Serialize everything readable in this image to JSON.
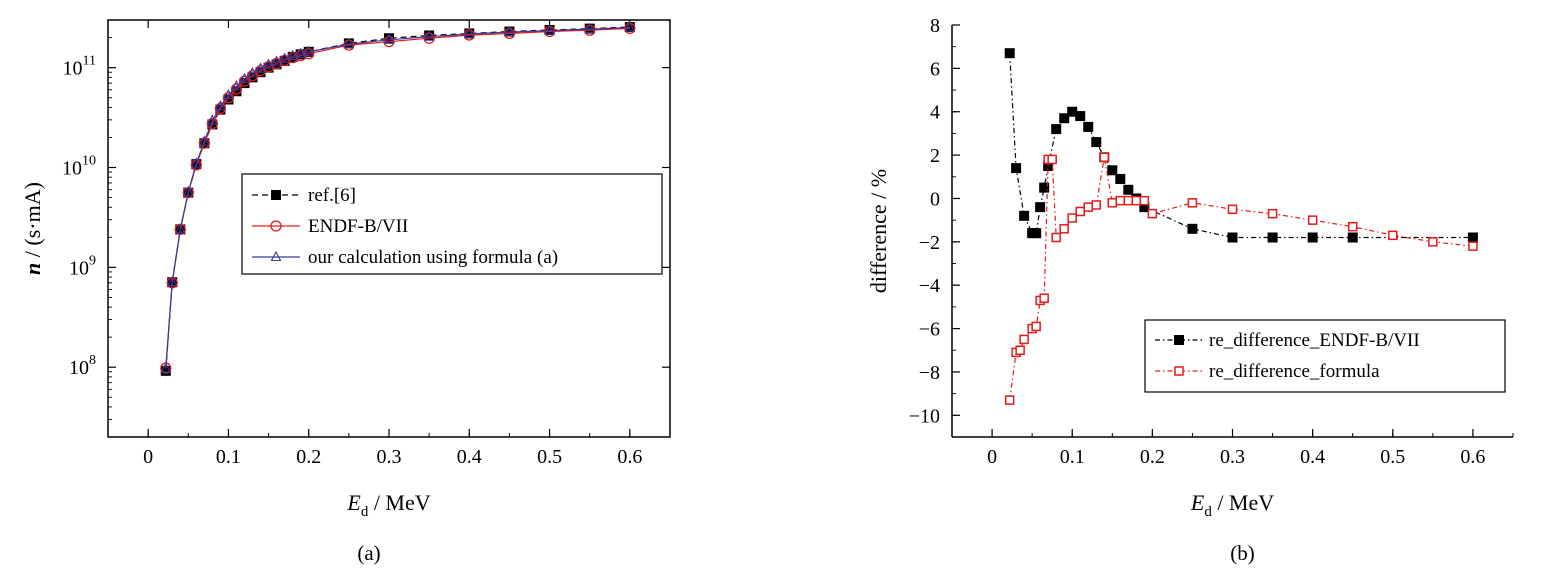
{
  "chart_data": [
    {
      "type": "line",
      "panel_label": "(a)",
      "xlabel_main": "E",
      "xlabel_sub": "d",
      "xlabel_rest": " / MeV",
      "ylabel_main": "n",
      "ylabel_rest": " / (s·mA)",
      "y_scale": "log",
      "xlim": [
        -0.05,
        0.65
      ],
      "ylim": [
        20000000,
        300000000000
      ],
      "x_ticks": [
        0,
        0.1,
        0.2,
        0.3,
        0.4,
        0.5,
        0.6
      ],
      "x_tick_labels": [
        "0",
        "0.1",
        "0.2",
        "0.3",
        "0.4",
        "0.5",
        "0.6"
      ],
      "y_ticks": [
        100000000,
        1000000000,
        10000000000,
        100000000000
      ],
      "y_tick_labels": [
        {
          "base": "10",
          "exp": "8"
        },
        {
          "base": "10",
          "exp": "9"
        },
        {
          "base": "10",
          "exp": "10"
        },
        {
          "base": "10",
          "exp": "11"
        }
      ],
      "legend_position": "center-right",
      "series": [
        {
          "name": "ref.[6]",
          "color": "#000000",
          "marker": "filled-square",
          "line": "dashed",
          "x": [
            0.022,
            0.03,
            0.04,
            0.05,
            0.06,
            0.07,
            0.08,
            0.09,
            0.1,
            0.11,
            0.12,
            0.13,
            0.14,
            0.15,
            0.16,
            0.17,
            0.18,
            0.19,
            0.2,
            0.25,
            0.3,
            0.35,
            0.4,
            0.45,
            0.5,
            0.55,
            0.6
          ],
          "y": [
            92000000.0,
            710000000.0,
            2400000000.0,
            5600000000.0,
            10800000000.0,
            17500000000.0,
            27000000000.0,
            38000000000.0,
            48000000000.0,
            58000000000.0,
            70000000000.0,
            80000000000.0,
            90000000000.0,
            100000000000.0,
            108000000000.0,
            117000000000.0,
            128000000000.0,
            136000000000.0,
            144000000000.0,
            175000000000.0,
            197000000000.0,
            210000000000.0,
            220000000000.0,
            230000000000.0,
            238000000000.0,
            246000000000.0,
            255000000000.0
          ]
        },
        {
          "name": "ENDF-B/VII",
          "color": "#e41a1a",
          "marker": "open-circle",
          "line": "solid",
          "x": [
            0.022,
            0.03,
            0.04,
            0.05,
            0.06,
            0.07,
            0.08,
            0.09,
            0.1,
            0.11,
            0.12,
            0.13,
            0.14,
            0.15,
            0.16,
            0.17,
            0.18,
            0.19,
            0.2,
            0.25,
            0.3,
            0.35,
            0.4,
            0.45,
            0.5,
            0.55,
            0.6
          ],
          "y": [
            98000000.0,
            700000000.0,
            2400000000.0,
            5600000000.0,
            10600000000.0,
            17500000000.0,
            27500000000.0,
            39000000000.0,
            50000000000.0,
            61000000000.0,
            73000000000.0,
            83000000000.0,
            93000000000.0,
            102000000000.0,
            110000000000.0,
            118000000000.0,
            126000000000.0,
            132000000000.0,
            138000000000.0,
            168000000000.0,
            182000000000.0,
            197000000000.0,
            212000000000.0,
            220000000000.0,
            230000000000.0,
            237000000000.0,
            247000000000.0
          ]
        },
        {
          "name": "our calculation using formula (a)",
          "color": "#3a3aa0",
          "marker": "open-triangle",
          "line": "solid",
          "x": [
            0.022,
            0.03,
            0.04,
            0.05,
            0.06,
            0.07,
            0.08,
            0.09,
            0.1,
            0.11,
            0.12,
            0.13,
            0.14,
            0.15,
            0.16,
            0.17,
            0.18,
            0.19,
            0.2,
            0.25,
            0.3,
            0.35,
            0.4,
            0.45,
            0.5,
            0.55,
            0.6
          ],
          "y": [
            97000000.0,
            710000000.0,
            2400000000.0,
            5700000000.0,
            11000000000.0,
            18200000000.0,
            29500000000.0,
            41000000000.0,
            53000000000.0,
            65000000000.0,
            77000000000.0,
            88000000000.0,
            98000000000.0,
            107000000000.0,
            115000000000.0,
            123000000000.0,
            131000000000.0,
            138000000000.0,
            144000000000.0,
            172000000000.0,
            190000000000.0,
            204000000000.0,
            217000000000.0,
            227000000000.0,
            235000000000.0,
            243000000000.0,
            252000000000.0
          ]
        }
      ]
    },
    {
      "type": "line",
      "panel_label": "(b)",
      "xlabel_main": "E",
      "xlabel_sub": "d",
      "xlabel_rest": " / MeV",
      "ylabel": "difference / %",
      "xlim": [
        -0.05,
        0.65
      ],
      "ylim": [
        -11,
        8
      ],
      "x_ticks": [
        0,
        0.1,
        0.2,
        0.3,
        0.4,
        0.5,
        0.6
      ],
      "x_tick_labels": [
        "0",
        "0.1",
        "0.2",
        "0.3",
        "0.4",
        "0.5",
        "0.6"
      ],
      "y_ticks": [
        -10,
        -8,
        -6,
        -4,
        -2,
        0,
        2,
        4,
        6,
        8
      ],
      "y_tick_labels": [
        "−10",
        "−8",
        "−6",
        "−4",
        "−2",
        "0",
        "2",
        "4",
        "6",
        "8"
      ],
      "legend_position": "lower-right",
      "series": [
        {
          "name": "re_difference_ENDF-B/VII",
          "color": "#000000",
          "marker": "filled-square",
          "line": "dash-dot",
          "x": [
            0.022,
            0.03,
            0.04,
            0.05,
            0.055,
            0.06,
            0.065,
            0.07,
            0.08,
            0.09,
            0.1,
            0.11,
            0.12,
            0.13,
            0.14,
            0.15,
            0.16,
            0.17,
            0.18,
            0.19,
            0.25,
            0.3,
            0.35,
            0.4,
            0.45,
            0.6
          ],
          "y": [
            6.7,
            1.4,
            -0.8,
            -1.6,
            -1.6,
            -0.4,
            0.5,
            1.5,
            3.2,
            3.7,
            4.0,
            3.8,
            3.3,
            2.6,
            1.9,
            1.3,
            0.9,
            0.4,
            0.0,
            -0.4,
            -1.4,
            -1.8,
            -1.8,
            -1.8,
            -1.8,
            -1.8
          ]
        },
        {
          "name": "re_difference_formula",
          "color": "#e41a1a",
          "marker": "open-square",
          "line": "dash-dot",
          "x": [
            0.022,
            0.03,
            0.035,
            0.04,
            0.05,
            0.055,
            0.06,
            0.065,
            0.07,
            0.075,
            0.08,
            0.09,
            0.1,
            0.11,
            0.12,
            0.13,
            0.14,
            0.15,
            0.16,
            0.17,
            0.18,
            0.19,
            0.2,
            0.25,
            0.3,
            0.35,
            0.4,
            0.45,
            0.5,
            0.55,
            0.6
          ],
          "y": [
            -9.3,
            -7.1,
            -7.0,
            -6.5,
            -6.0,
            -5.9,
            -4.7,
            -4.6,
            1.8,
            1.8,
            -1.8,
            -1.4,
            -0.9,
            -0.6,
            -0.4,
            -0.3,
            1.9,
            -0.2,
            -0.1,
            -0.1,
            -0.1,
            -0.1,
            -0.7,
            -0.2,
            -0.5,
            -0.7,
            -1.0,
            -1.3,
            -1.7,
            -2.0,
            -2.2
          ]
        }
      ]
    }
  ]
}
